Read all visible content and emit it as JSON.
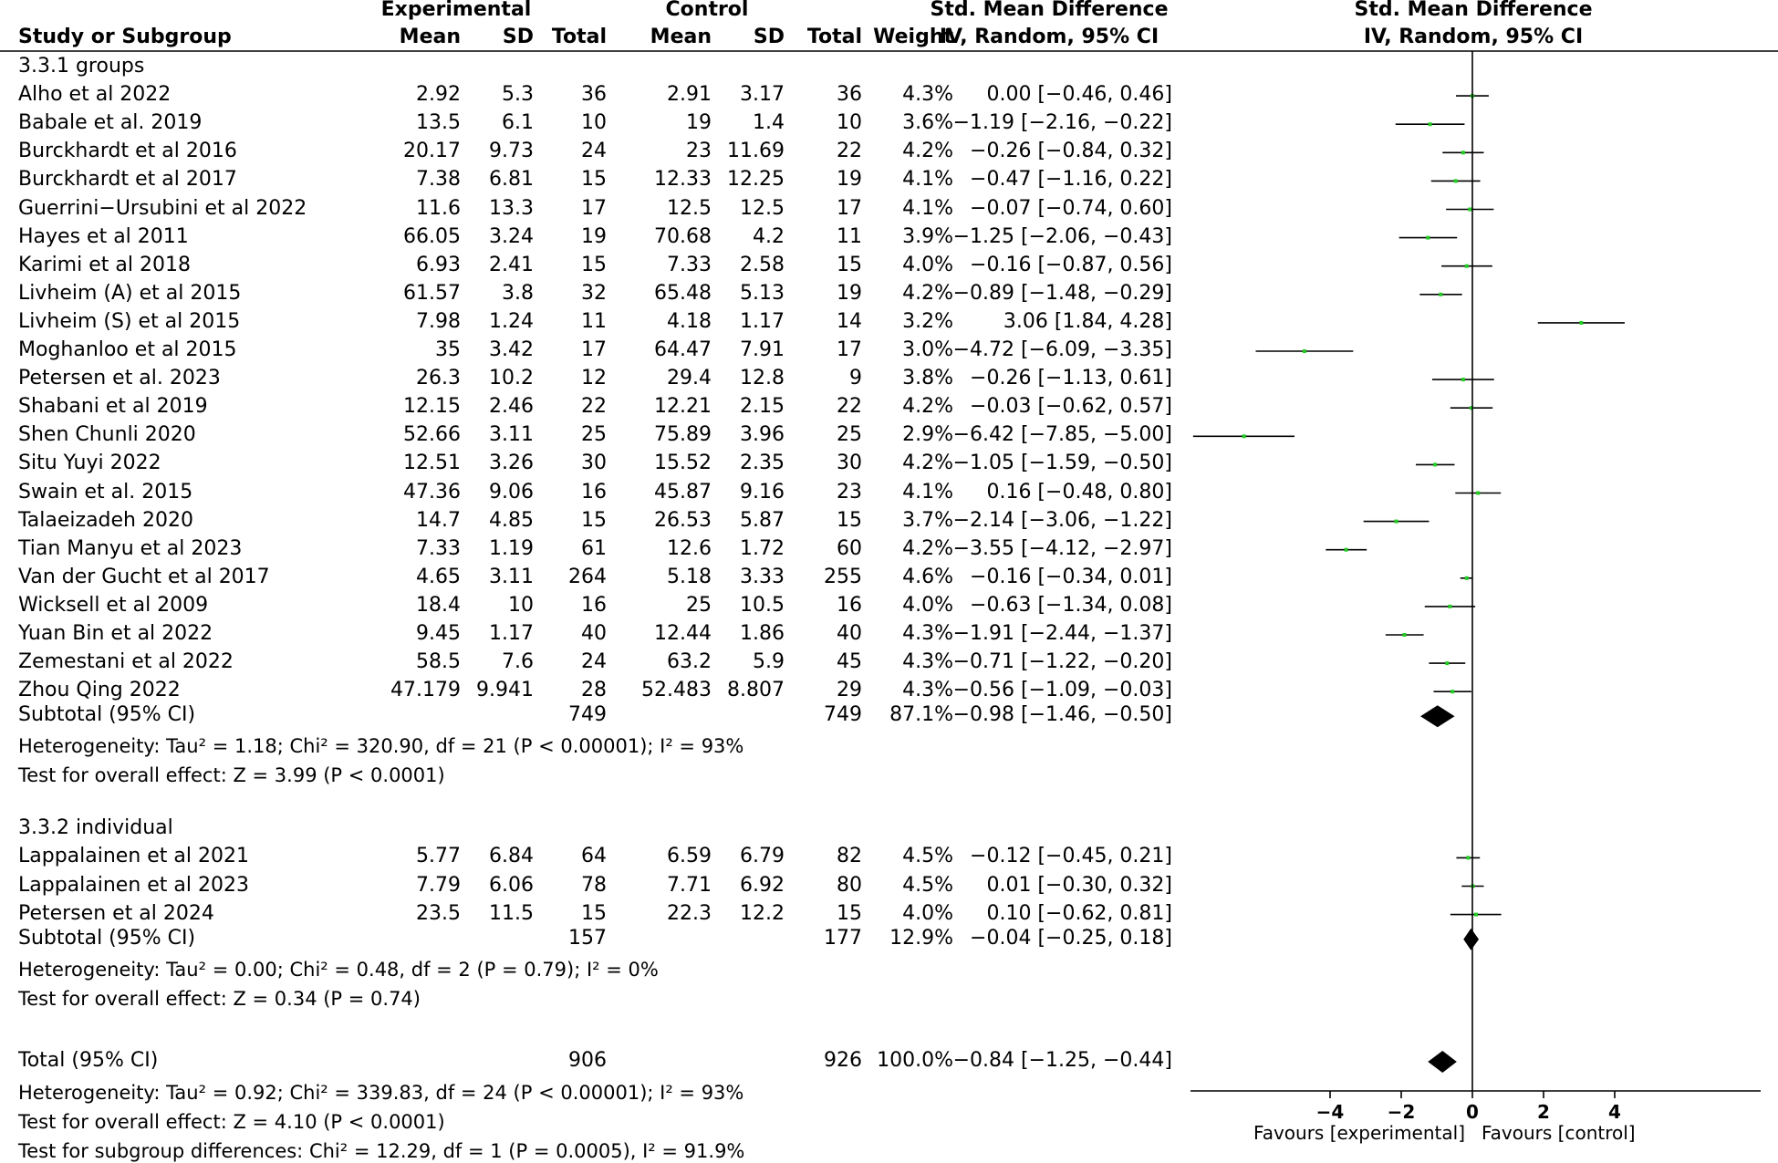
{
  "headers": {
    "study": "Study or Subgroup",
    "experimental": "Experimental",
    "control": "Control",
    "mean": "Mean",
    "sd": "SD",
    "total": "Total",
    "weight": "Weight",
    "smd": "Std. Mean Difference",
    "method": "IV, Random, 95% CI"
  },
  "subgroups": [
    {
      "title": "3.3.1 groups",
      "rows": [
        {
          "study": "Alho et al 2022",
          "e_mean": "2.92",
          "e_sd": "5.3",
          "e_total": "36",
          "c_mean": "2.91",
          "c_sd": "3.17",
          "c_total": "36",
          "weight": "4.3%",
          "ci": "0.00 [−0.46, 0.46]",
          "est": 0.0,
          "lo": -0.46,
          "hi": 0.46
        },
        {
          "study": "Babale et al. 2019",
          "e_mean": "13.5",
          "e_sd": "6.1",
          "e_total": "10",
          "c_mean": "19",
          "c_sd": "1.4",
          "c_total": "10",
          "weight": "3.6%",
          "ci": "−1.19 [−2.16, −0.22]",
          "est": -1.19,
          "lo": -2.16,
          "hi": -0.22
        },
        {
          "study": "Burckhardt et al 2016",
          "e_mean": "20.17",
          "e_sd": "9.73",
          "e_total": "24",
          "c_mean": "23",
          "c_sd": "11.69",
          "c_total": "22",
          "weight": "4.2%",
          "ci": "−0.26 [−0.84, 0.32]",
          "est": -0.26,
          "lo": -0.84,
          "hi": 0.32
        },
        {
          "study": "Burckhardt et al 2017",
          "e_mean": "7.38",
          "e_sd": "6.81",
          "e_total": "15",
          "c_mean": "12.33",
          "c_sd": "12.25",
          "c_total": "19",
          "weight": "4.1%",
          "ci": "−0.47 [−1.16, 0.22]",
          "est": -0.47,
          "lo": -1.16,
          "hi": 0.22
        },
        {
          "study": "Guerrini−Ursubini et al 2022",
          "e_mean": "11.6",
          "e_sd": "13.3",
          "e_total": "17",
          "c_mean": "12.5",
          "c_sd": "12.5",
          "c_total": "17",
          "weight": "4.1%",
          "ci": "−0.07 [−0.74, 0.60]",
          "est": -0.07,
          "lo": -0.74,
          "hi": 0.6
        },
        {
          "study": "Hayes et al 2011",
          "e_mean": "66.05",
          "e_sd": "3.24",
          "e_total": "19",
          "c_mean": "70.68",
          "c_sd": "4.2",
          "c_total": "11",
          "weight": "3.9%",
          "ci": "−1.25 [−2.06, −0.43]",
          "est": -1.25,
          "lo": -2.06,
          "hi": -0.43
        },
        {
          "study": "Karimi et al 2018",
          "e_mean": "6.93",
          "e_sd": "2.41",
          "e_total": "15",
          "c_mean": "7.33",
          "c_sd": "2.58",
          "c_total": "15",
          "weight": "4.0%",
          "ci": "−0.16 [−0.87, 0.56]",
          "est": -0.16,
          "lo": -0.87,
          "hi": 0.56
        },
        {
          "study": "Livheim  (A)  et al 2015",
          "e_mean": "61.57",
          "e_sd": "3.8",
          "e_total": "32",
          "c_mean": "65.48",
          "c_sd": "5.13",
          "c_total": "19",
          "weight": "4.2%",
          "ci": "−0.89 [−1.48, −0.29]",
          "est": -0.89,
          "lo": -1.48,
          "hi": -0.29
        },
        {
          "study": "Livheim  (S)  et al 2015",
          "e_mean": "7.98",
          "e_sd": "1.24",
          "e_total": "11",
          "c_mean": "4.18",
          "c_sd": "1.17",
          "c_total": "14",
          "weight": "3.2%",
          "ci": "3.06 [1.84, 4.28]",
          "est": 3.06,
          "lo": 1.84,
          "hi": 4.28
        },
        {
          "study": "Moghanloo et al 2015",
          "e_mean": "35",
          "e_sd": "3.42",
          "e_total": "17",
          "c_mean": "64.47",
          "c_sd": "7.91",
          "c_total": "17",
          "weight": "3.0%",
          "ci": "−4.72 [−6.09, −3.35]",
          "est": -4.72,
          "lo": -6.09,
          "hi": -3.35
        },
        {
          "study": "Petersen et al. 2023",
          "e_mean": "26.3",
          "e_sd": "10.2",
          "e_total": "12",
          "c_mean": "29.4",
          "c_sd": "12.8",
          "c_total": "9",
          "weight": "3.8%",
          "ci": "−0.26 [−1.13, 0.61]",
          "est": -0.26,
          "lo": -1.13,
          "hi": 0.61
        },
        {
          "study": "Shabani et al 2019",
          "e_mean": "12.15",
          "e_sd": "2.46",
          "e_total": "22",
          "c_mean": "12.21",
          "c_sd": "2.15",
          "c_total": "22",
          "weight": "4.2%",
          "ci": "−0.03 [−0.62, 0.57]",
          "est": -0.03,
          "lo": -0.62,
          "hi": 0.57
        },
        {
          "study": "Shen Chunli 2020",
          "e_mean": "52.66",
          "e_sd": "3.11",
          "e_total": "25",
          "c_mean": "75.89",
          "c_sd": "3.96",
          "c_total": "25",
          "weight": "2.9%",
          "ci": "−6.42 [−7.85, −5.00]",
          "est": -6.42,
          "lo": -7.85,
          "hi": -5.0
        },
        {
          "study": "Situ Yuyi 2022",
          "e_mean": "12.51",
          "e_sd": "3.26",
          "e_total": "30",
          "c_mean": "15.52",
          "c_sd": "2.35",
          "c_total": "30",
          "weight": "4.2%",
          "ci": "−1.05 [−1.59, −0.50]",
          "est": -1.05,
          "lo": -1.59,
          "hi": -0.5
        },
        {
          "study": "Swain et al. 2015",
          "e_mean": "47.36",
          "e_sd": "9.06",
          "e_total": "16",
          "c_mean": "45.87",
          "c_sd": "9.16",
          "c_total": "23",
          "weight": "4.1%",
          "ci": "0.16 [−0.48, 0.80]",
          "est": 0.16,
          "lo": -0.48,
          "hi": 0.8
        },
        {
          "study": "Talaeizadeh 2020",
          "e_mean": "14.7",
          "e_sd": "4.85",
          "e_total": "15",
          "c_mean": "26.53",
          "c_sd": "5.87",
          "c_total": "15",
          "weight": "3.7%",
          "ci": "−2.14 [−3.06, −1.22]",
          "est": -2.14,
          "lo": -3.06,
          "hi": -1.22
        },
        {
          "study": "Tian Manyu et al 2023",
          "e_mean": "7.33",
          "e_sd": "1.19",
          "e_total": "61",
          "c_mean": "12.6",
          "c_sd": "1.72",
          "c_total": "60",
          "weight": "4.2%",
          "ci": "−3.55 [−4.12, −2.97]",
          "est": -3.55,
          "lo": -4.12,
          "hi": -2.97
        },
        {
          "study": "Van der Gucht et al 2017",
          "e_mean": "4.65",
          "e_sd": "3.11",
          "e_total": "264",
          "c_mean": "5.18",
          "c_sd": "3.33",
          "c_total": "255",
          "weight": "4.6%",
          "ci": "−0.16 [−0.34, 0.01]",
          "est": -0.16,
          "lo": -0.34,
          "hi": 0.01
        },
        {
          "study": "Wicksell et al 2009",
          "e_mean": "18.4",
          "e_sd": "10",
          "e_total": "16",
          "c_mean": "25",
          "c_sd": "10.5",
          "c_total": "16",
          "weight": "4.0%",
          "ci": "−0.63 [−1.34, 0.08]",
          "est": -0.63,
          "lo": -1.34,
          "hi": 0.08
        },
        {
          "study": "Yuan Bin et al 2022",
          "e_mean": "9.45",
          "e_sd": "1.17",
          "e_total": "40",
          "c_mean": "12.44",
          "c_sd": "1.86",
          "c_total": "40",
          "weight": "4.3%",
          "ci": "−1.91 [−2.44, −1.37]",
          "est": -1.91,
          "lo": -2.44,
          "hi": -1.37
        },
        {
          "study": "Zemestani et al 2022",
          "e_mean": "58.5",
          "e_sd": "7.6",
          "e_total": "24",
          "c_mean": "63.2",
          "c_sd": "5.9",
          "c_total": "45",
          "weight": "4.3%",
          "ci": "−0.71 [−1.22, −0.20]",
          "est": -0.71,
          "lo": -1.22,
          "hi": -0.2
        },
        {
          "study": "Zhou Qing 2022",
          "e_mean": "47.179",
          "e_sd": "9.941",
          "e_total": "28",
          "c_mean": "52.483",
          "c_sd": "8.807",
          "c_total": "29",
          "weight": "4.3%",
          "ci": "−0.56 [−1.09, −0.03]",
          "est": -0.56,
          "lo": -1.09,
          "hi": -0.03
        }
      ],
      "subtotal": {
        "label": "Subtotal (95% CI)",
        "e_total": "749",
        "c_total": "749",
        "weight": "87.1%",
        "ci": "−0.98 [−1.46, −0.50]",
        "est": -0.98,
        "lo": -1.46,
        "hi": -0.5
      },
      "heterogeneity": "Heterogeneity: Tau² = 1.18; Chi² = 320.90, df = 21 (P < 0.00001); I² = 93%",
      "overall": "Test for overall effect: Z = 3.99 (P < 0.0001)"
    },
    {
      "title": "3.3.2 individual",
      "rows": [
        {
          "study": "Lappalainen et al 2021",
          "e_mean": "5.77",
          "e_sd": "6.84",
          "e_total": "64",
          "c_mean": "6.59",
          "c_sd": "6.79",
          "c_total": "82",
          "weight": "4.5%",
          "ci": "−0.12 [−0.45, 0.21]",
          "est": -0.12,
          "lo": -0.45,
          "hi": 0.21
        },
        {
          "study": "Lappalainen et al 2023",
          "e_mean": "7.79",
          "e_sd": "6.06",
          "e_total": "78",
          "c_mean": "7.71",
          "c_sd": "6.92",
          "c_total": "80",
          "weight": "4.5%",
          "ci": "0.01 [−0.30, 0.32]",
          "est": 0.01,
          "lo": -0.3,
          "hi": 0.32
        },
        {
          "study": "Petersen et al 2024",
          "e_mean": "23.5",
          "e_sd": "11.5",
          "e_total": "15",
          "c_mean": "22.3",
          "c_sd": "12.2",
          "c_total": "15",
          "weight": "4.0%",
          "ci": "0.10 [−0.62, 0.81]",
          "est": 0.1,
          "lo": -0.62,
          "hi": 0.81
        }
      ],
      "subtotal": {
        "label": "Subtotal (95% CI)",
        "e_total": "157",
        "c_total": "177",
        "weight": "12.9%",
        "ci": "−0.04 [−0.25, 0.18]",
        "est": -0.04,
        "lo": -0.25,
        "hi": 0.18
      },
      "heterogeneity": "Heterogeneity: Tau² = 0.00; Chi² = 0.48, df = 2 (P = 0.79); I² = 0%",
      "overall": "Test for overall effect: Z = 0.34 (P = 0.74)"
    }
  ],
  "total": {
    "label": "Total (95% CI)",
    "e_total": "906",
    "c_total": "926",
    "weight": "100.0%",
    "ci": "−0.84 [−1.25, −0.44]",
    "est": -0.84,
    "lo": -1.25,
    "hi": -0.44,
    "heterogeneity": "Heterogeneity: Tau² = 0.92; Chi² = 339.83, df = 24 (P < 0.00001); I² = 93%",
    "overall": "Test for overall effect: Z = 4.10 (P < 0.0001)",
    "subgroup_diff": "Test for subgroup differences: Chi² = 12.29, df = 1 (P = 0.0005), I² = 91.9%"
  },
  "chart_data": {
    "type": "forest",
    "xlim": [
      -8,
      8
    ],
    "ticks": [
      -4,
      -2,
      0,
      2,
      4
    ],
    "tick_labels": [
      "−4",
      "−2",
      "0",
      "2",
      "4"
    ],
    "favours_left": "Favours [experimental]",
    "favours_right": "Favours [control]",
    "point_color": "#22cc22",
    "diamond_color": "#000000"
  }
}
